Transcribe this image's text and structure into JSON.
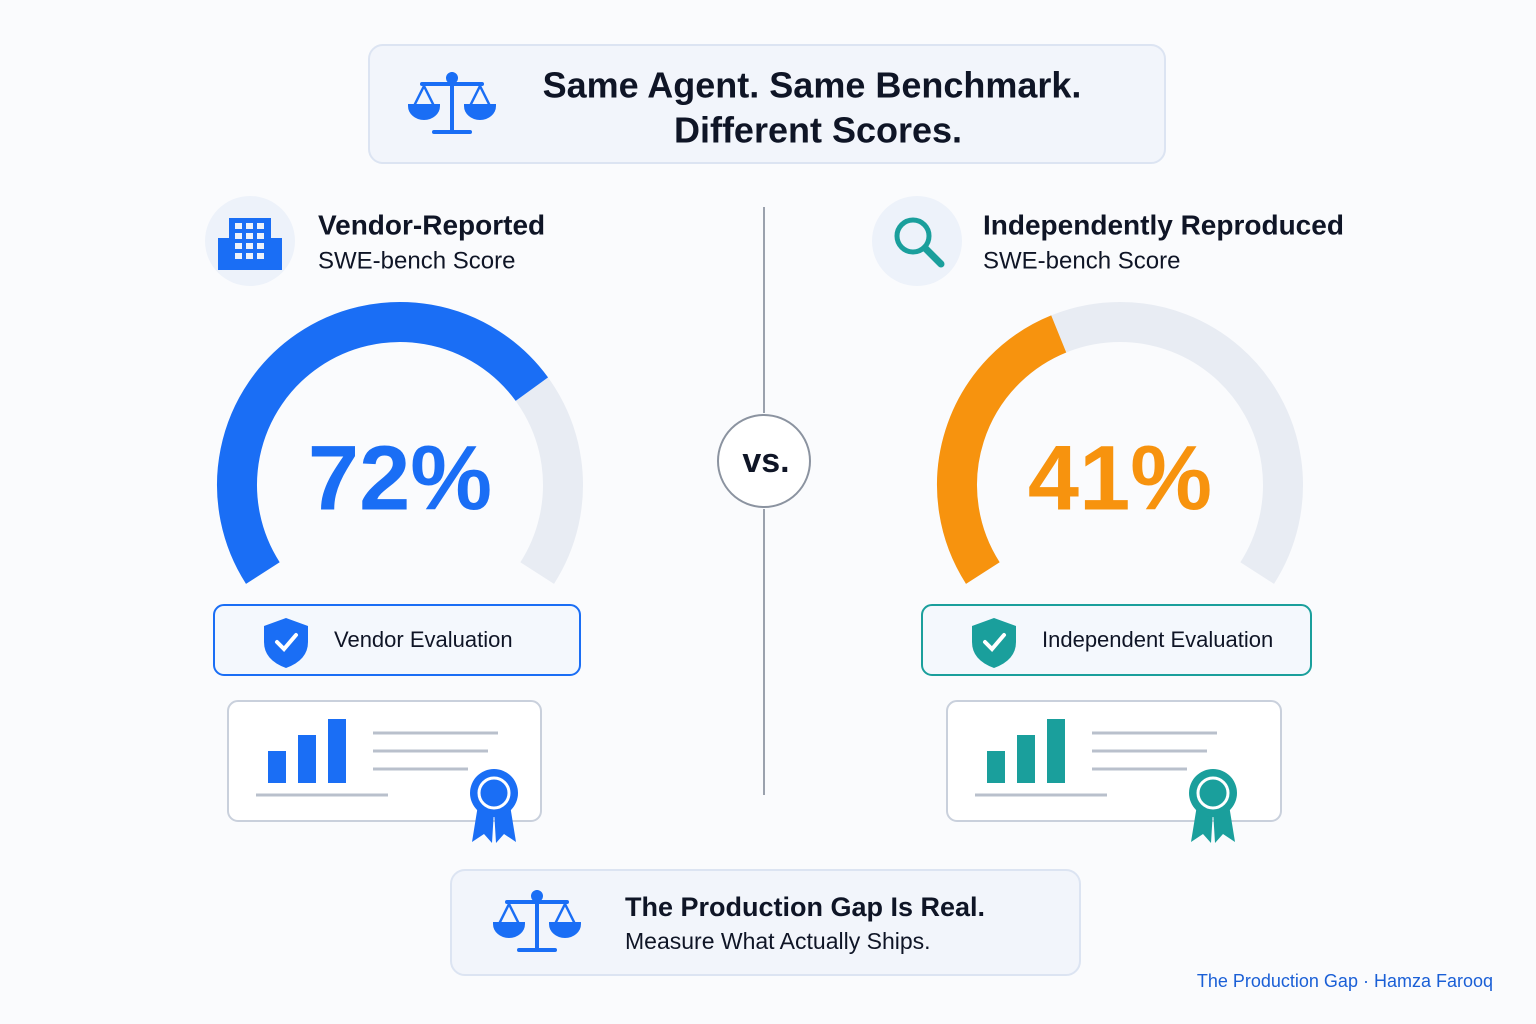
{
  "header": {
    "title_line1": "Same Agent. Same Benchmark.",
    "title_line2": "Different Scores."
  },
  "gauge_range": [
    0,
    100
  ],
  "panels": [
    {
      "title": "Vendor-Reported",
      "subtitle": "SWE-bench Score",
      "score": 72,
      "score_label": "72%",
      "color": "#1a6ef5",
      "accent": "#1a6ef5",
      "badge": "Vendor Evaluation"
    },
    {
      "title": "Independently Reproduced",
      "subtitle": "SWE-bench Score",
      "score": 41,
      "score_label": "41%",
      "color": "#f7930e",
      "accent": "#1a9f9c",
      "badge": "Independent Evaluation"
    }
  ],
  "vs": "vs.",
  "footer": {
    "title": "The Production Gap Is Real.",
    "subtitle": "Measure What Actually Ships."
  },
  "credit": "The Production Gap · Hamza Farooq"
}
